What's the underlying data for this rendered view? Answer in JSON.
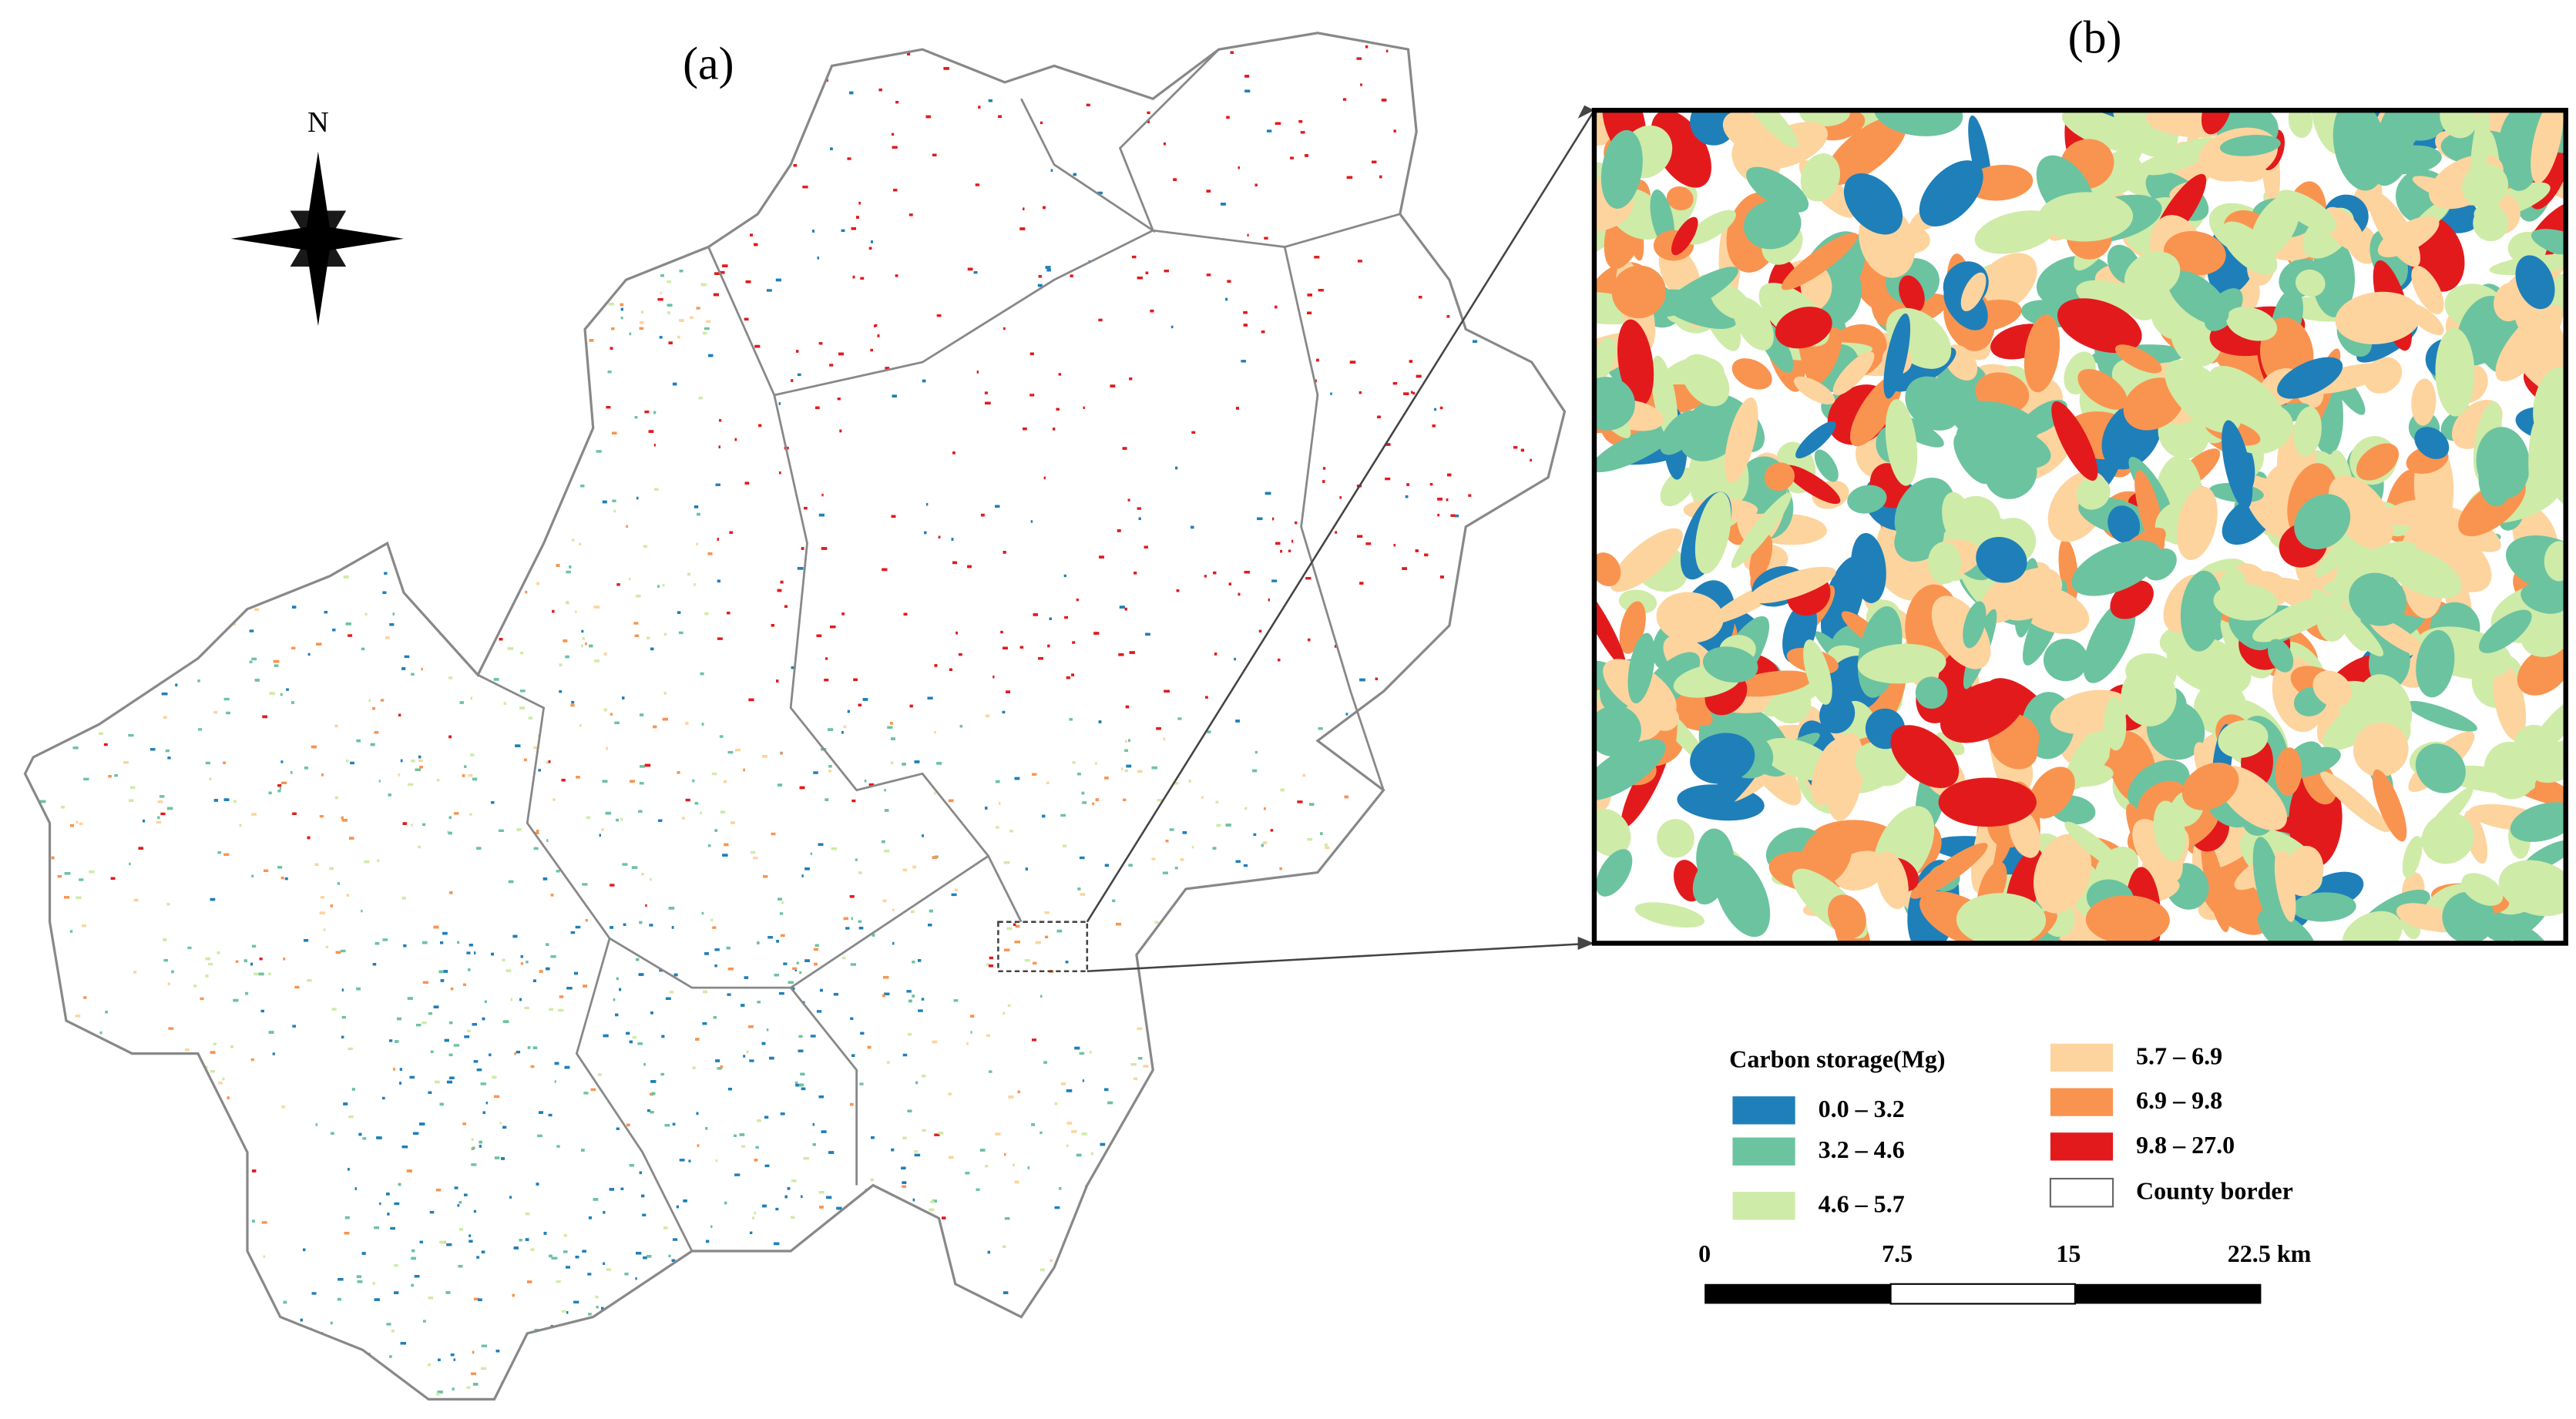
{
  "panels": {
    "a": "(a)",
    "b": "(b)"
  },
  "north_arrow": "N",
  "legend": {
    "title": "Carbon storage(Mg)",
    "items": [
      {
        "label": "0.0 – 3.2",
        "color": "#1f7fb9"
      },
      {
        "label": "3.2 – 4.6",
        "color": "#6cc3a0"
      },
      {
        "label": "4.6 – 5.7",
        "color": "#cfeba8"
      },
      {
        "label": "5.7 – 6.9",
        "color": "#fdd49e"
      },
      {
        "label": "6.9 – 9.8",
        "color": "#f99450"
      },
      {
        "label": "9.8 – 27.0",
        "color": "#e31a1c"
      }
    ],
    "county_border": "County border"
  },
  "scale_bar": {
    "labels": [
      "0",
      "7.5",
      "15",
      "22.5 km"
    ]
  }
}
